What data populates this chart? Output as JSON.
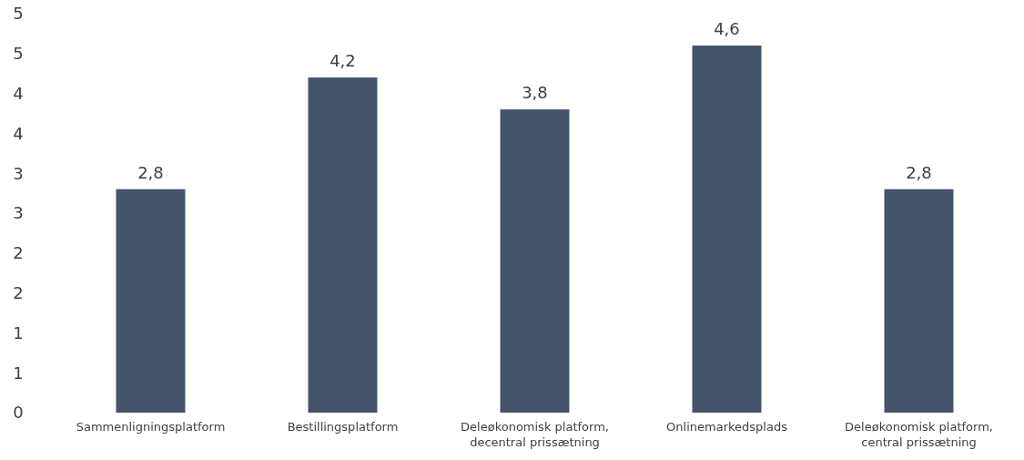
{
  "chart_data": {
    "type": "bar",
    "categories": [
      "Sammenligningsplatform",
      "Bestillingsplatform",
      "Deleøkonomisk platform,\ndecentral prissætning",
      "Onlinemarkedsplads",
      "Deleøkonomisk platform,\ncentral prissætning"
    ],
    "values": [
      2.8,
      4.2,
      3.8,
      4.6,
      2.8
    ],
    "value_labels": [
      "2,8",
      "4,2",
      "3,8",
      "4,6",
      "2,8"
    ],
    "color": "#44546a",
    "ylim": [
      0,
      5
    ],
    "yticks": [
      0,
      {
        "value": 0.5,
        "label": "1"
      },
      1,
      {
        "value": 1.5,
        "label": "2"
      },
      2,
      {
        "value": 2.5,
        "label": "3"
      },
      3,
      {
        "value": 3.5,
        "label": "4"
      },
      4,
      {
        "value": 4.5,
        "label": "5"
      },
      5
    ],
    "grid": false
  }
}
